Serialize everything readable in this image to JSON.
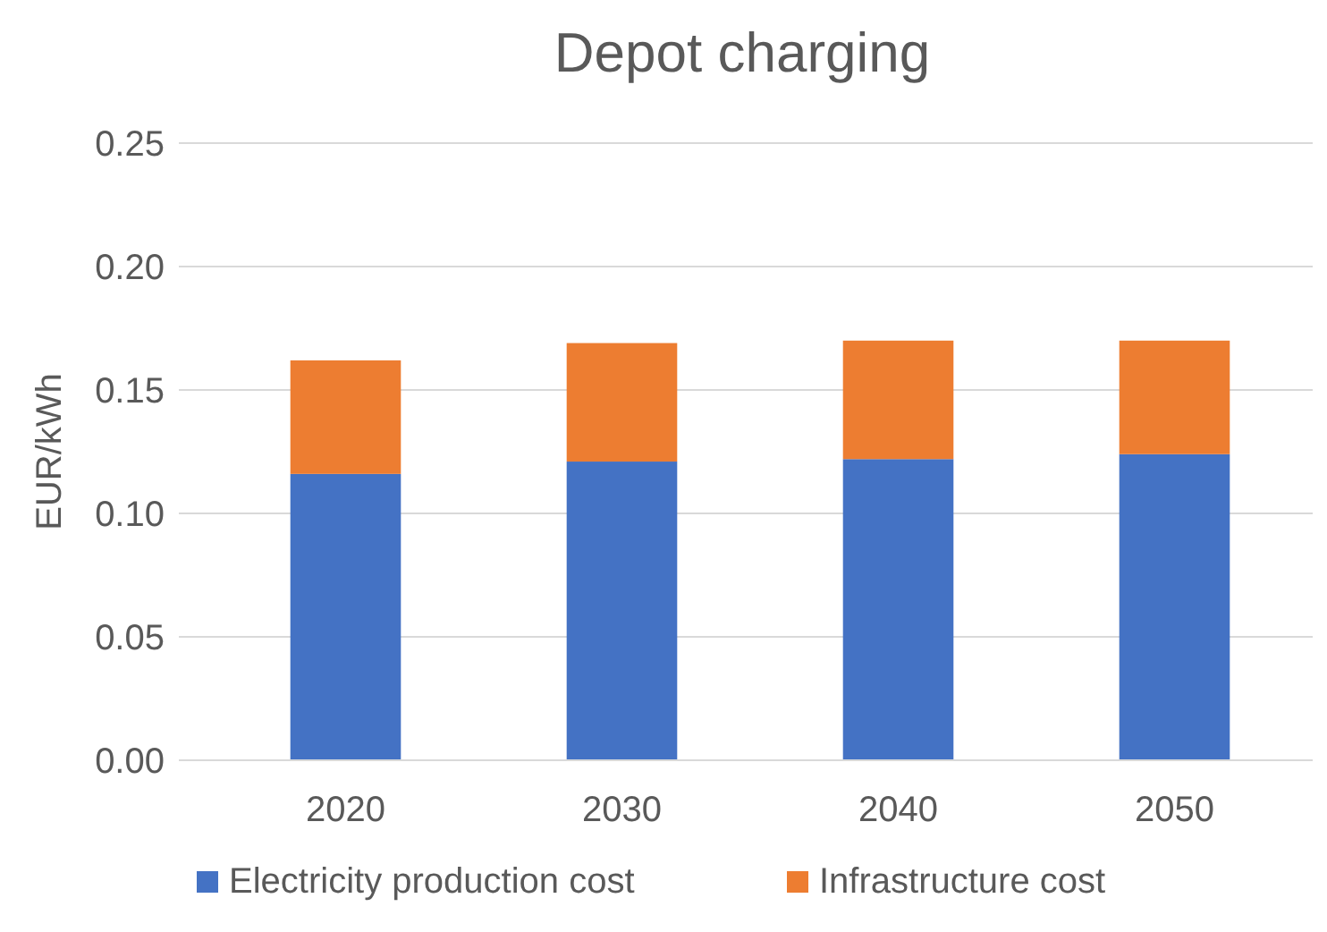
{
  "chart_data": {
    "type": "bar",
    "title": "Depot charging",
    "ylabel": "EUR/kWh",
    "categories": [
      "2020",
      "2030",
      "2040",
      "2050"
    ],
    "stacked": true,
    "series": [
      {
        "name": "Electricity production cost",
        "color": "#4472c4",
        "values": [
          0.116,
          0.121,
          0.122,
          0.124
        ]
      },
      {
        "name": "Infrastructure cost",
        "color": "#ed7d31",
        "values": [
          0.046,
          0.048,
          0.048,
          0.046
        ]
      }
    ],
    "ylim": [
      0,
      0.25
    ],
    "yticks": [
      {
        "value": 0,
        "label": "0.00"
      },
      {
        "value": 0.05,
        "label": "0.05"
      },
      {
        "value": 0.1,
        "label": "0.10"
      },
      {
        "value": 0.15,
        "label": "0.15"
      },
      {
        "value": 0.2,
        "label": "0.20"
      },
      {
        "value": 0.25,
        "label": "0.25"
      }
    ],
    "grid": "y",
    "legend": "bottom"
  }
}
